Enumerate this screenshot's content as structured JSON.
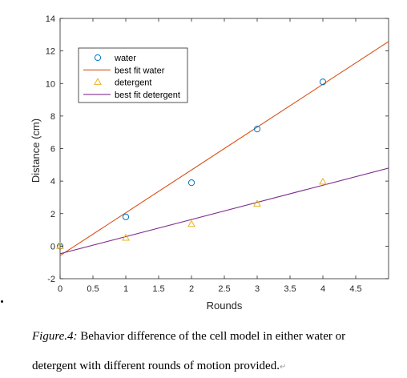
{
  "chart_data": {
    "type": "scatter",
    "xlabel": "Rounds",
    "ylabel": "Distance (cm)",
    "xlim": [
      0,
      5
    ],
    "ylim": [
      -2,
      14
    ],
    "x_ticks": [
      0,
      0.5,
      1,
      1.5,
      2,
      2.5,
      3,
      3.5,
      4,
      4.5
    ],
    "x_tick_labels": [
      "0",
      "0.5",
      "1",
      "1.5",
      "2",
      "2.5",
      "3",
      "3.5",
      "4",
      "4.5"
    ],
    "y_ticks": [
      -2,
      0,
      2,
      4,
      6,
      8,
      10,
      12,
      14
    ],
    "y_tick_labels": [
      "-2",
      "0",
      "2",
      "4",
      "6",
      "8",
      "10",
      "12",
      "14"
    ],
    "grid": false,
    "legend_position": "top-left",
    "series": [
      {
        "name": "water",
        "kind": "scatter",
        "marker": "circle",
        "color": "#0072BD",
        "x": [
          0,
          1,
          2,
          3,
          4
        ],
        "y": [
          0,
          1.8,
          3.9,
          7.2,
          10.1
        ]
      },
      {
        "name": "best fit water",
        "kind": "line",
        "color": "#D95319",
        "x": [
          -0.05,
          5
        ],
        "y": [
          -0.71,
          12.58
        ]
      },
      {
        "name": "detergent",
        "kind": "scatter",
        "marker": "triangle",
        "color": "#EDB120",
        "x": [
          0,
          1,
          2,
          3,
          4
        ],
        "y": [
          0,
          0.5,
          1.35,
          2.6,
          3.95
        ]
      },
      {
        "name": "best fit detergent",
        "kind": "line",
        "color": "#7E2F8E",
        "x": [
          -0.05,
          5
        ],
        "y": [
          -0.52,
          4.8
        ]
      }
    ]
  },
  "caption": {
    "figure_label": "Figure.4:",
    "line1": " Behavior difference of the cell model in either water or",
    "line2": "detergent with different rounds of motion provided.",
    "return_mark": "↵"
  }
}
